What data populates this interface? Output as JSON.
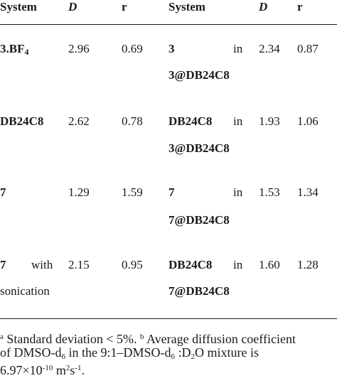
{
  "table": {
    "headers": {
      "system_left": "System",
      "d_left": "D",
      "r_left": "r",
      "system_right": "System",
      "d_right": "D",
      "r_right": "r"
    },
    "rows": [
      {
        "left_system_main": "3.BF",
        "left_system_sub": "4",
        "left_d": "2.96",
        "left_r": "0.69",
        "right_system_line1_a": "3",
        "right_system_line1_b": "in",
        "right_system_line2": "3@DB24C8",
        "right_d": "2.34",
        "right_r": "0.87"
      },
      {
        "left_system_main": "DB24C8",
        "left_d": "2.62",
        "left_r": "0.78",
        "right_system_line1_a": "DB24C8",
        "right_system_line1_b": "in",
        "right_system_line2": "3@DB24C8",
        "right_d": "1.93",
        "right_r": "1.06"
      },
      {
        "left_system_main": "7",
        "left_d": "1.29",
        "left_r": "1.59",
        "right_system_line1_a": "7",
        "right_system_line1_b": "in",
        "right_system_line2": "7@DB24C8",
        "right_d": "1.53",
        "right_r": "1.34"
      },
      {
        "left_system_line1_a": "7",
        "left_system_line1_b": "with",
        "left_system_line2": "sonication",
        "left_d": "2.15",
        "left_r": "0.95",
        "right_system_line1_a": "DB24C8",
        "right_system_line1_b": "in",
        "right_system_line2": "7@DB24C8",
        "right_d": "1.60",
        "right_r": "1.28"
      }
    ]
  },
  "footnote": {
    "a_mark": "a",
    "a_text": " Standard deviation < 5%. ",
    "b_mark": "b",
    "b_text": " Average diffusion coefficient",
    "line2_a": "of DMSO-d",
    "line2_sub": "6",
    "line2_b": " in the 9:1–DMSO-d",
    "line2_sub2": "6",
    "line2_c": " :D",
    "line2_sub3": "2",
    "line2_d": "O mixture is",
    "line3_a": "6.97×10",
    "line3_sup": "-10",
    "line3_b": " m",
    "line3_sup2": "2",
    "line3_c": "s",
    "line3_sup3": "-1",
    "line3_d": "."
  }
}
